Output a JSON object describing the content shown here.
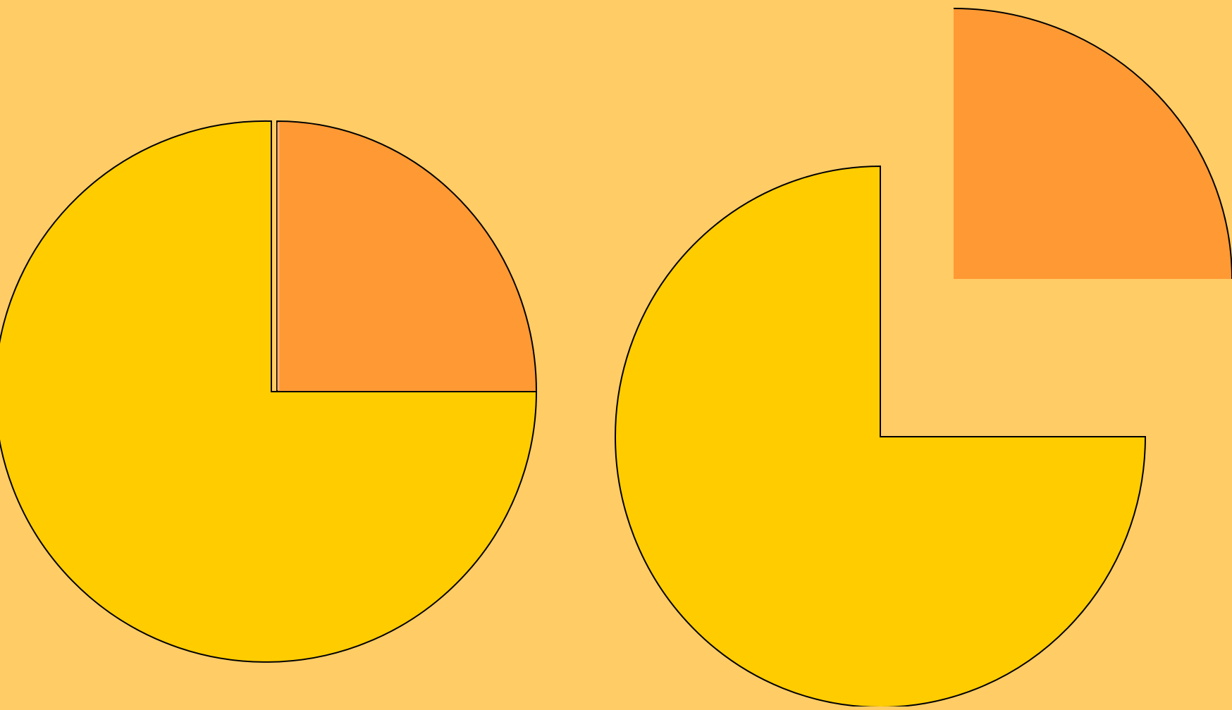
{
  "colors": {
    "background": "#FFCC66",
    "large_segment": "#FFCC00",
    "small_segment": "#FF9933",
    "outline": "#000000",
    "highlight": "#FFB07A"
  },
  "diagrams": [
    {
      "kind": "whole",
      "segments": [
        {
          "fraction": 0.75,
          "color_key": "large_segment"
        },
        {
          "fraction": 0.25,
          "color_key": "small_segment"
        }
      ]
    },
    {
      "kind": "exploded",
      "segments": [
        {
          "fraction": 0.75,
          "color_key": "large_segment"
        },
        {
          "fraction": 0.25,
          "color_key": "small_segment",
          "detached": true
        }
      ]
    }
  ]
}
